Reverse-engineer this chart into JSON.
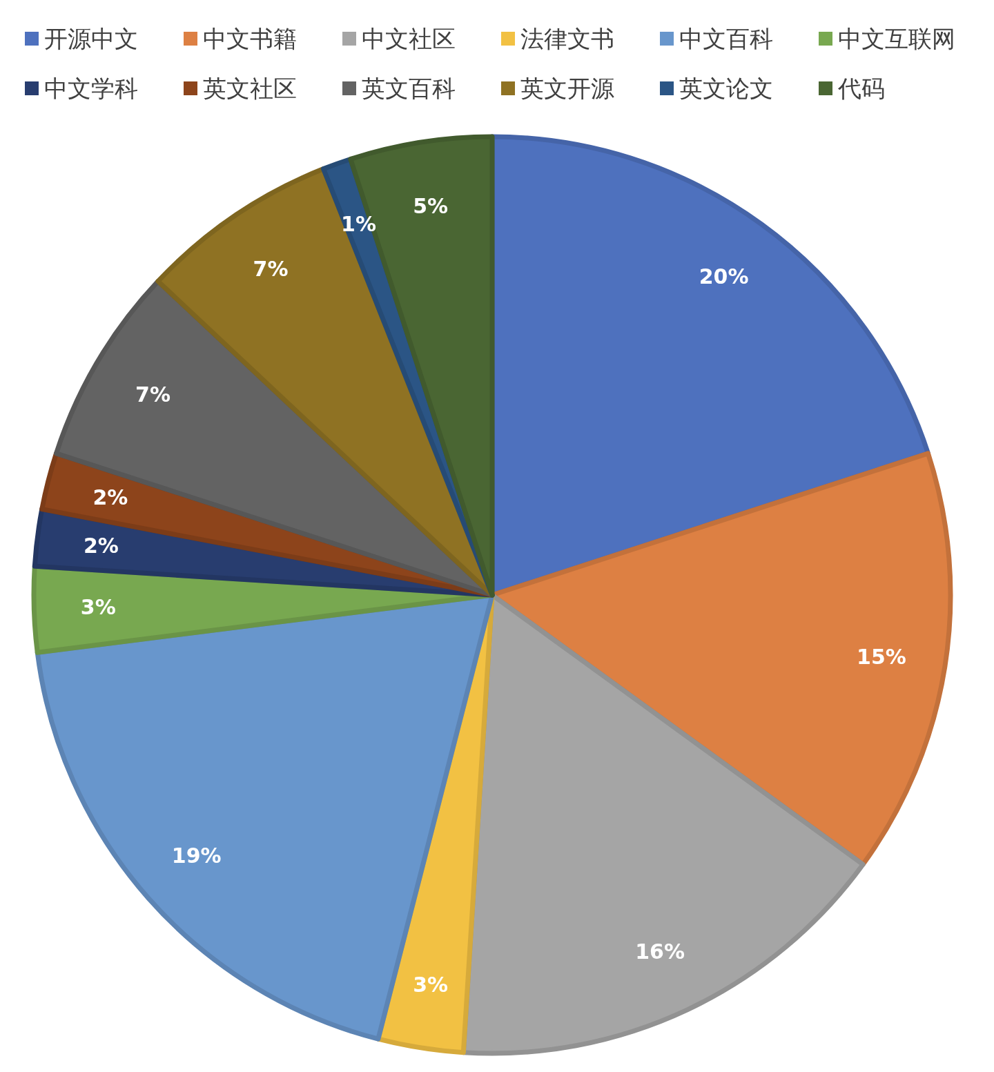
{
  "chart_data": {
    "type": "pie",
    "categories": [
      "开源中文",
      "中文书籍",
      "中文社区",
      "法律文书",
      "中文百科",
      "中文互联网",
      "中文学科",
      "英文社区",
      "英文百科",
      "英文开源",
      "英文论文",
      "代码"
    ],
    "values": [
      20,
      15,
      16,
      3,
      19,
      3,
      2,
      2,
      7,
      7,
      1,
      5
    ],
    "colors": [
      "#4e71be",
      "#dd8043",
      "#a5a5a5",
      "#f2c143",
      "#6896cc",
      "#78a850",
      "#283d6f",
      "#8d441b",
      "#636363",
      "#8f7223",
      "#2b5585",
      "#4a6633"
    ],
    "value_labels": [
      "20%",
      "15%",
      "16%",
      "3%",
      "19%",
      "3%",
      "2%",
      "2%",
      "7%",
      "7%",
      "1%",
      "5%"
    ],
    "legend": "top"
  }
}
